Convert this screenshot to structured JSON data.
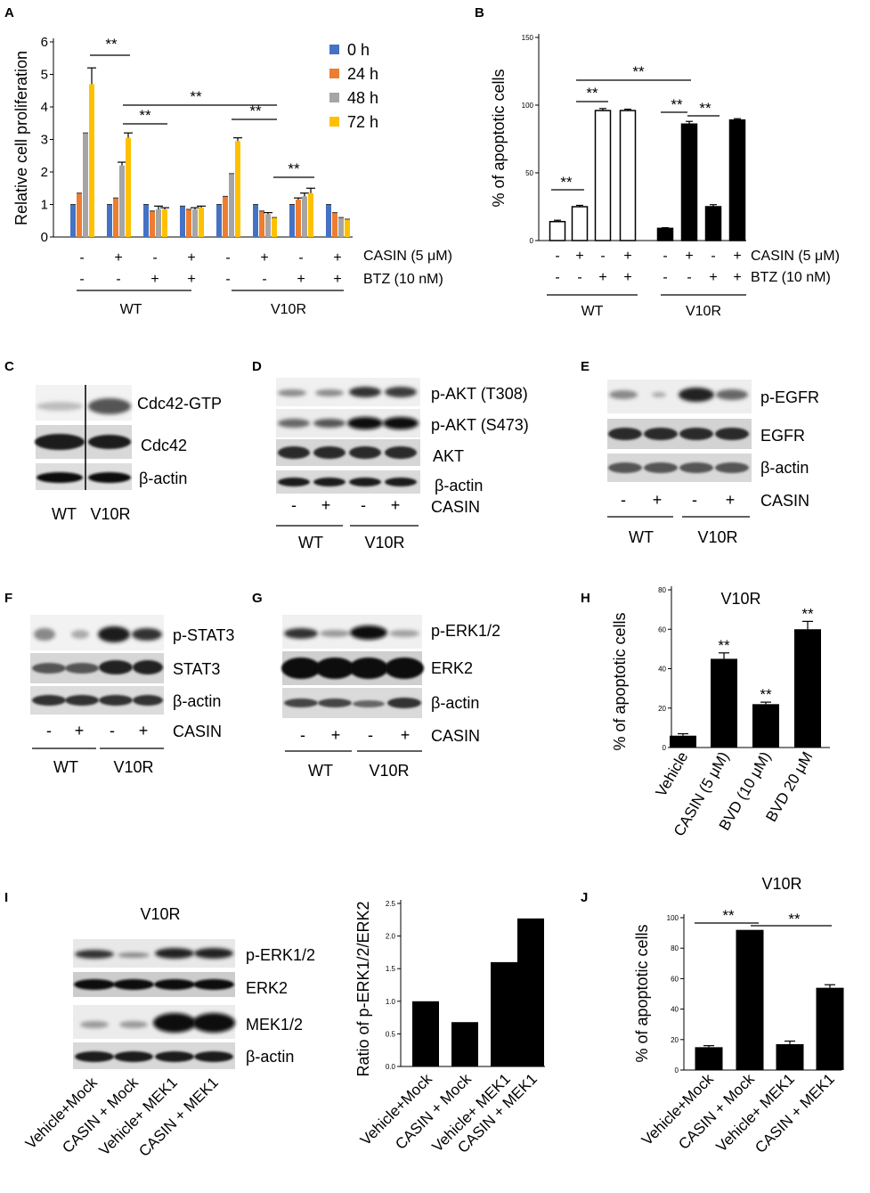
{
  "panels": {
    "A": "A",
    "B": "B",
    "C": "C",
    "D": "D",
    "E": "E",
    "F": "F",
    "G": "G",
    "H": "H",
    "I": "I",
    "J": "J"
  },
  "common": {
    "plus": "+",
    "minus": "-",
    "sig": "**"
  },
  "chartA": {
    "type": "bar",
    "ylabel": "Relative cell proliferation",
    "ylim": [
      0,
      6
    ],
    "yticks": [
      "0",
      "1",
      "2",
      "3",
      "4",
      "5",
      "6"
    ],
    "legend": [
      "0 h",
      "24 h",
      "48 h",
      "72 h"
    ],
    "colors": [
      "#4472c4",
      "#ed7d31",
      "#a5a5a5",
      "#ffc000"
    ],
    "groups": [
      {
        "casin": "-",
        "btz": "-",
        "values": [
          1.0,
          1.35,
          3.2,
          4.7
        ],
        "err": [
          0,
          0,
          0,
          0.5
        ]
      },
      {
        "casin": "+",
        "btz": "-",
        "values": [
          1.0,
          1.2,
          2.2,
          3.05
        ],
        "err": [
          0,
          0,
          0.1,
          0.15
        ]
      },
      {
        "casin": "-",
        "btz": "+",
        "values": [
          1.0,
          0.8,
          0.85,
          0.85
        ],
        "err": [
          0,
          0,
          0.1,
          0.05
        ]
      },
      {
        "casin": "+",
        "btz": "+",
        "values": [
          0.95,
          0.85,
          0.85,
          0.9
        ],
        "err": [
          0,
          0,
          0.05,
          0.05
        ]
      },
      {
        "casin": "-",
        "btz": "-",
        "values": [
          1.0,
          1.25,
          1.95,
          2.95
        ],
        "err": [
          0,
          0,
          0,
          0.1
        ]
      },
      {
        "casin": "+",
        "btz": "-",
        "values": [
          1.0,
          0.8,
          0.7,
          0.6
        ],
        "err": [
          0,
          0,
          0.05,
          0
        ]
      },
      {
        "casin": "-",
        "btz": "+",
        "values": [
          1.0,
          1.15,
          1.25,
          1.35
        ],
        "err": [
          0,
          0.05,
          0.1,
          0.15
        ]
      },
      {
        "casin": "+",
        "btz": "+",
        "values": [
          1.0,
          0.75,
          0.6,
          0.55
        ],
        "err": [
          0,
          0,
          0,
          0
        ]
      }
    ],
    "row_labels": [
      "CASIN (5 μM)",
      "BTZ (10 nM)"
    ],
    "genotypes": [
      "WT",
      "V10R"
    ]
  },
  "chartB": {
    "type": "bar",
    "ylabel": "% of apoptotic cells",
    "ylim": [
      0,
      150
    ],
    "yticks": [
      "0",
      "50",
      "100",
      "150"
    ],
    "bars": [
      {
        "value": 14,
        "err": 1,
        "fill": "#ffffff",
        "casin": "-",
        "btz": "-"
      },
      {
        "value": 25,
        "err": 1,
        "fill": "#ffffff",
        "casin": "+",
        "btz": "-"
      },
      {
        "value": 96,
        "err": 1.5,
        "fill": "#ffffff",
        "casin": "-",
        "btz": "+"
      },
      {
        "value": 96,
        "err": 1,
        "fill": "#ffffff",
        "casin": "+",
        "btz": "+"
      },
      {
        "value": 9,
        "err": 0.5,
        "fill": "#000000",
        "casin": "-",
        "btz": "-"
      },
      {
        "value": 86,
        "err": 2,
        "fill": "#000000",
        "casin": "+",
        "btz": "-"
      },
      {
        "value": 25,
        "err": 1.5,
        "fill": "#000000",
        "casin": "-",
        "btz": "+"
      },
      {
        "value": 89,
        "err": 1,
        "fill": "#000000",
        "casin": "+",
        "btz": "+"
      }
    ],
    "row_labels": [
      "CASIN (5 μM)",
      "BTZ (10 nM)"
    ],
    "genotypes": [
      "WT",
      "V10R"
    ]
  },
  "blotC": {
    "bands": [
      "Cdc42-GTP",
      "Cdc42",
      "β-actin"
    ],
    "lanes": [
      "WT",
      "V10R"
    ]
  },
  "blotD": {
    "bands": [
      "p-AKT (T308)",
      "p-AKT (S473)",
      "AKT",
      "β-actin"
    ],
    "treatment": "CASIN",
    "genotypes": [
      "WT",
      "V10R"
    ]
  },
  "blotE": {
    "bands": [
      "p-EGFR",
      "EGFR",
      "β-actin"
    ],
    "treatment": "CASIN",
    "genotypes": [
      "WT",
      "V10R"
    ]
  },
  "blotF": {
    "bands": [
      "p-STAT3",
      "STAT3",
      "β-actin"
    ],
    "treatment": "CASIN",
    "genotypes": [
      "WT",
      "V10R"
    ]
  },
  "blotG": {
    "bands": [
      "p-ERK1/2",
      "ERK2",
      "β-actin"
    ],
    "treatment": "CASIN",
    "genotypes": [
      "WT",
      "V10R"
    ]
  },
  "chartH": {
    "type": "bar",
    "title": "V10R",
    "ylabel": "% of apoptotic cells",
    "ylim": [
      0,
      80
    ],
    "yticks": [
      "0",
      "20",
      "40",
      "60",
      "80"
    ],
    "categories": [
      "Vehicle",
      "CASIN (5 μM)",
      "BVD (10 μM)",
      "BVD 20 μM"
    ],
    "values": [
      6,
      45,
      22,
      60
    ],
    "err": [
      1,
      3,
      1,
      4
    ],
    "sig": [
      "",
      "**",
      "**",
      "**"
    ]
  },
  "blotI": {
    "title": "V10R",
    "bands": [
      "p-ERK1/2",
      "ERK2",
      "MEK1/2",
      "β-actin"
    ],
    "lanes": [
      "Vehicle+Mock",
      "CASIN + Mock",
      "Vehicle+ MEK1",
      "CASIN + MEK1"
    ]
  },
  "chartI": {
    "type": "bar",
    "ylabel": "Ratio of  p-ERK1/2/ERK2",
    "ylim": [
      0,
      2.5
    ],
    "yticks": [
      "0.0",
      "0.5",
      "1.0",
      "1.5",
      "2.0",
      "2.5"
    ],
    "categories": [
      "Vehicle+Mock",
      "CASIN + Mock",
      "Vehicle+ MEK1",
      "CASIN + MEK1"
    ],
    "values": [
      1.0,
      0.68,
      1.6,
      2.27
    ]
  },
  "chartJ": {
    "type": "bar",
    "title": "V10R",
    "ylabel": "% of apoptotic cells",
    "ylim": [
      0,
      100
    ],
    "yticks": [
      "0",
      "20",
      "40",
      "60",
      "80",
      "100"
    ],
    "categories": [
      "Vehicle+Mock",
      "CASIN + Mock",
      "Vehicle+ MEK1",
      "CASIN + MEK1"
    ],
    "values": [
      15,
      92,
      17,
      54
    ],
    "err": [
      1,
      0,
      2,
      2
    ]
  }
}
